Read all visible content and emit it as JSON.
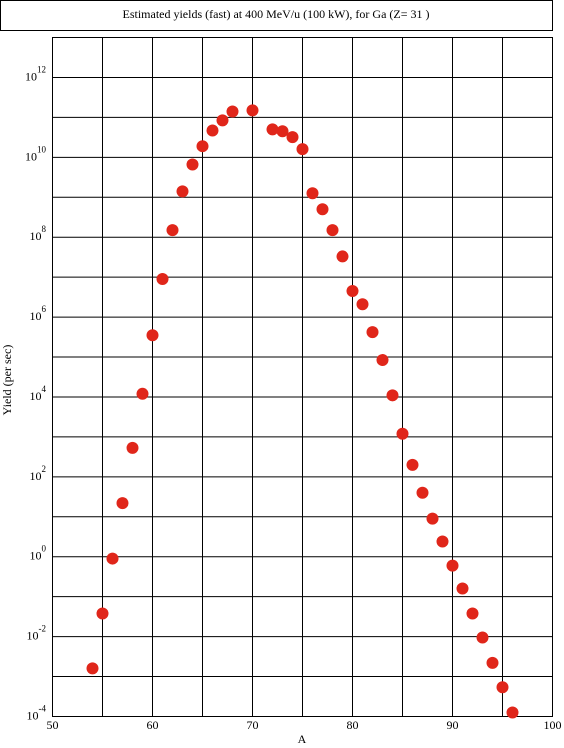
{
  "chart_data": {
    "type": "scatter",
    "title": "Estimated yields (fast) at 400 MeV/u (100 kW), for Ga (Z= 31 )",
    "x_label": "A",
    "y_label": "Yield (per sec)",
    "log_y": true,
    "grid": true,
    "color": "#e0261a",
    "xlim": [
      50,
      100
    ],
    "xticks": [
      50,
      60,
      70,
      80,
      90,
      100
    ],
    "xgrid": [
      55,
      65,
      75,
      85,
      95
    ],
    "ylim": [
      0.0001,
      10000000000000
    ],
    "yticks": [
      {
        "value": 0.0001,
        "label": "10^-4"
      },
      {
        "value": 0.01,
        "label": "10^-2"
      },
      {
        "value": 1,
        "label": "10^0"
      },
      {
        "value": 100,
        "label": "10^2"
      },
      {
        "value": 10000,
        "label": "10^4"
      },
      {
        "value": 1000000,
        "label": "10^6"
      },
      {
        "value": 100000000,
        "label": "10^8"
      },
      {
        "value": 10000000000,
        "label": "10^10"
      },
      {
        "value": 1000000000000,
        "label": "10^12"
      }
    ],
    "ygrid": [
      0.001,
      0.1,
      10,
      1000,
      100000,
      10000000,
      1000000000,
      100000000000,
      10000000000000
    ],
    "x": [
      54,
      55,
      56,
      57,
      58,
      59,
      60,
      61,
      62,
      63,
      64,
      65,
      66,
      67,
      68,
      70,
      72,
      73,
      74,
      75,
      76,
      77,
      78,
      79,
      80,
      81,
      82,
      83,
      84,
      85,
      86,
      87,
      88,
      89,
      90,
      91,
      92,
      93,
      94,
      95,
      96
    ],
    "values": [
      0.0016,
      0.038,
      0.9,
      22,
      530,
      12000,
      350000,
      9000000,
      150000000,
      1400000000,
      6600000000,
      19000000000,
      47000000000,
      84000000000,
      140000000000,
      150000000000,
      50000000000,
      45000000000,
      32000000000,
      16000000000,
      1260000000,
      500000000,
      150000000,
      33000000,
      4500000,
      2100000,
      420000,
      84000,
      11000,
      1200,
      200,
      40,
      9,
      2.4,
      0.6,
      0.16,
      0.038,
      0.0095,
      0.0022,
      0.00054,
      0.000126
    ]
  }
}
